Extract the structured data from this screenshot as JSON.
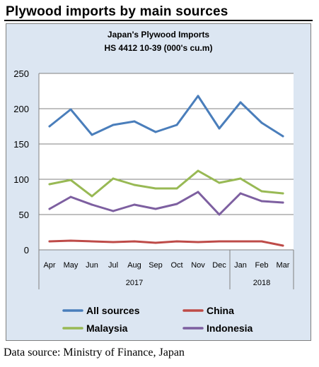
{
  "heading": "Plywood imports by main sources",
  "source_note": "Data source: Ministry of Finance, Japan",
  "colors": {
    "panel_bg": "#dce6f2",
    "plot_bg": "#ffffff",
    "grid": "#808080",
    "all_sources": "#4a7ebb",
    "china": "#be4b48",
    "malaysia": "#98b954",
    "indonesia": "#7d5fa0"
  },
  "chart_data": {
    "type": "line",
    "title": "Japan's Plywood Imports",
    "subtitle": "HS 4412 10-39 (000's cu.m)",
    "xlabel": "",
    "ylabel": "",
    "ylim": [
      0,
      250
    ],
    "yticks": [
      "0",
      "50",
      "100",
      "150",
      "200",
      "250"
    ],
    "grid": true,
    "legend_position": "bottom",
    "categories": [
      "Apr",
      "May",
      "Jun",
      "Jul",
      "Aug",
      "Sep",
      "Oct",
      "Nov",
      "Dec",
      "Jan",
      "Feb",
      "Mar"
    ],
    "year_groups": [
      {
        "label": "2017",
        "start": 0,
        "end": 8
      },
      {
        "label": "2018",
        "start": 9,
        "end": 11
      }
    ],
    "series": [
      {
        "name": "All sources",
        "color": "#4a7ebb",
        "values": [
          175,
          199,
          163,
          177,
          182,
          167,
          177,
          218,
          172,
          209,
          180,
          161
        ]
      },
      {
        "name": "China",
        "color": "#be4b48",
        "values": [
          12,
          13,
          12,
          11,
          12,
          10,
          12,
          11,
          12,
          12,
          12,
          6
        ]
      },
      {
        "name": "Malaysia",
        "color": "#98b954",
        "values": [
          93,
          99,
          76,
          101,
          92,
          87,
          87,
          112,
          95,
          101,
          83,
          80
        ]
      },
      {
        "name": "Indonesia",
        "color": "#7d5fa0",
        "values": [
          58,
          75,
          64,
          55,
          64,
          58,
          65,
          82,
          50,
          80,
          69,
          67
        ]
      }
    ],
    "legend_rows": [
      [
        "All sources",
        "China"
      ],
      [
        "Malaysia",
        "Indonesia"
      ]
    ]
  }
}
